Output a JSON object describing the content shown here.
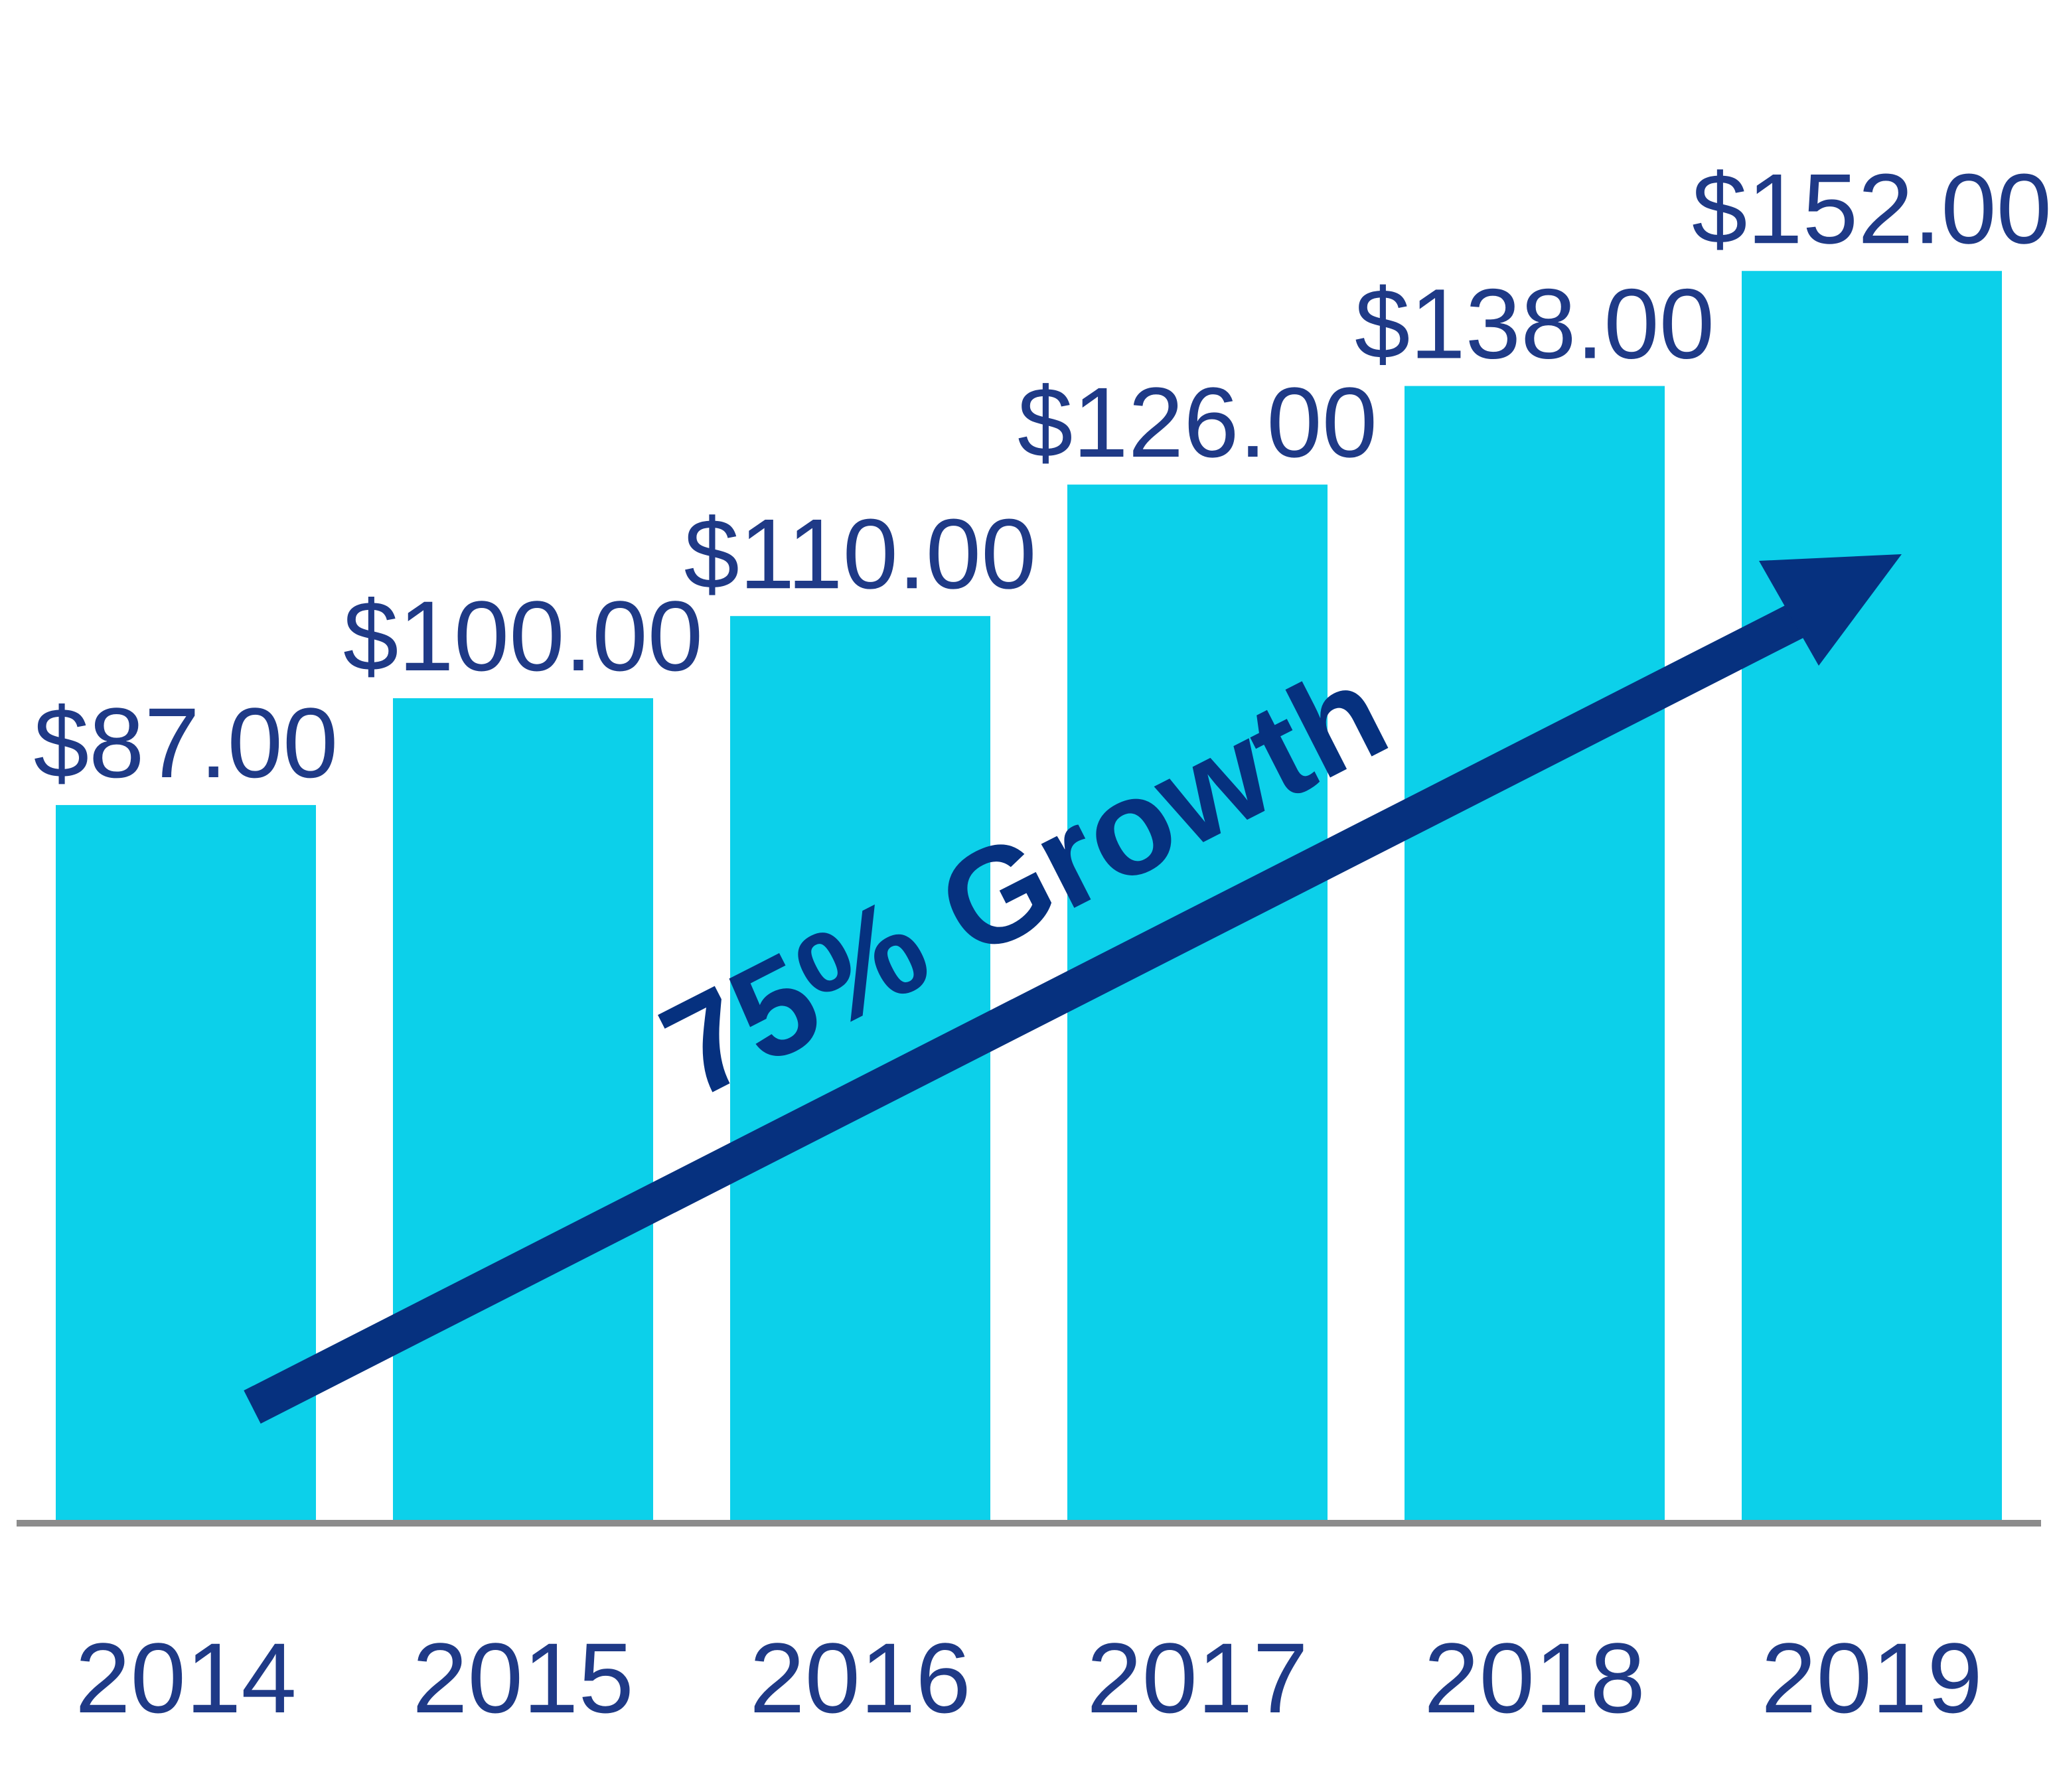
{
  "chart_data": {
    "type": "bar",
    "categories": [
      "2014",
      "2015",
      "2016",
      "2017",
      "2018",
      "2019"
    ],
    "values": [
      87,
      100,
      110,
      126,
      138,
      152
    ],
    "value_labels": [
      "$87.00",
      "$100.00",
      "$110.00",
      "$126.00",
      "$138.00",
      "$152.00"
    ],
    "title": "",
    "xlabel": "",
    "ylabel": "",
    "grid": false,
    "legend": "none",
    "annotation": "75% Growth"
  },
  "colors": {
    "bar": "#0cd0ea",
    "label_text": "#1f3a87",
    "arrow": "#06317f",
    "axis_line": "#8c8c8c"
  }
}
